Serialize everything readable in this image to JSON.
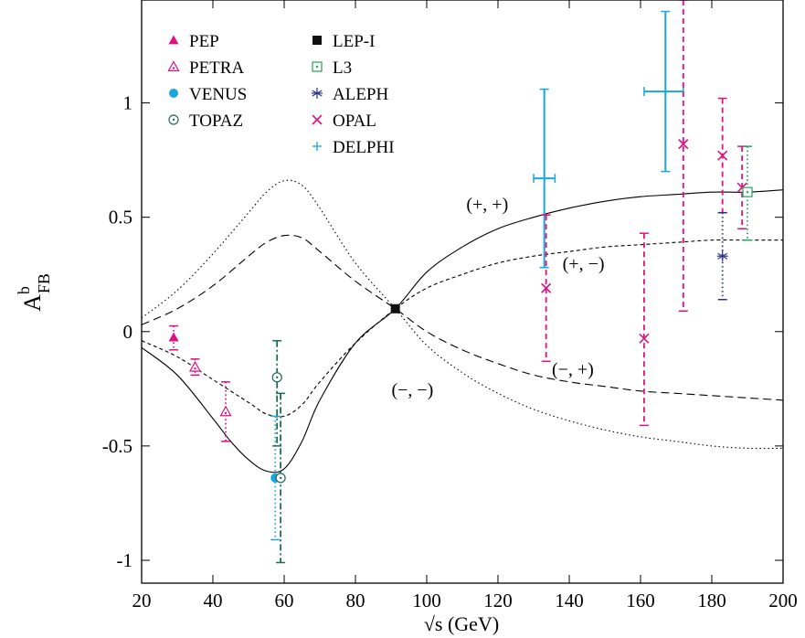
{
  "chart_data": {
    "type": "scatter",
    "xlabel": "√s (GeV)",
    "ylabel_main": "A",
    "ylabel_sup": "b",
    "ylabel_sub": "FB",
    "xlim": [
      20,
      200
    ],
    "ylim": [
      -1.1,
      1.45
    ],
    "xticks": [
      20,
      40,
      60,
      80,
      100,
      120,
      140,
      160,
      180,
      200
    ],
    "yticks": [
      -1,
      -0.5,
      0,
      0.5,
      1
    ],
    "xtick_labels": [
      "20",
      "40",
      "60",
      "80",
      "100",
      "120",
      "140",
      "160",
      "180",
      "200"
    ],
    "ytick_labels": [
      "-1",
      "-0.5",
      "0",
      "0.5",
      "1"
    ],
    "grid": false,
    "legend_position": "top-left",
    "legend": [
      {
        "label": "PEP",
        "marker": "triangle-filled",
        "color": "#e0117f"
      },
      {
        "label": "PETRA",
        "marker": "triangle-dot",
        "color": "#e0117f"
      },
      {
        "label": "VENUS",
        "marker": "circle-filled",
        "color": "#1aa6de"
      },
      {
        "label": "TOPAZ",
        "marker": "circle-dot",
        "color": "#1f6b4e"
      },
      {
        "label": "LEP-I",
        "marker": "square-filled",
        "color": "#111111"
      },
      {
        "label": "L3",
        "marker": "square-dot",
        "color": "#22a356"
      },
      {
        "label": "ALEPH",
        "marker": "asterisk",
        "color": "#2a3580"
      },
      {
        "label": "OPAL",
        "marker": "cross",
        "color": "#e0117f"
      },
      {
        "label": "DELPHI",
        "marker": "plus",
        "color": "#1aa6de"
      }
    ],
    "curves": [
      {
        "label": "(+, +)",
        "style": "solid",
        "x": [
          20,
          30,
          40,
          45,
          50,
          55,
          60,
          65,
          70,
          80,
          91.2,
          100,
          110,
          120,
          130,
          140,
          150,
          160,
          170,
          180,
          190,
          200
        ],
        "y": [
          -0.07,
          -0.19,
          -0.38,
          -0.48,
          -0.56,
          -0.61,
          -0.6,
          -0.48,
          -0.3,
          -0.05,
          0.1,
          0.26,
          0.37,
          0.45,
          0.5,
          0.54,
          0.57,
          0.59,
          0.6,
          0.61,
          0.61,
          0.62
        ]
      },
      {
        "label": "(+, −)",
        "style": "short-dash",
        "x": [
          20,
          30,
          40,
          50,
          55,
          60,
          65,
          70,
          80,
          91.2,
          100,
          110,
          120,
          130,
          140,
          150,
          160,
          170,
          180,
          190,
          200
        ],
        "y": [
          -0.04,
          -0.11,
          -0.21,
          -0.31,
          -0.36,
          -0.37,
          -0.32,
          -0.22,
          -0.05,
          0.1,
          0.19,
          0.25,
          0.3,
          0.33,
          0.35,
          0.37,
          0.38,
          0.39,
          0.4,
          0.4,
          0.4
        ]
      },
      {
        "label": "(−, +)",
        "style": "long-dash",
        "x": [
          20,
          30,
          40,
          50,
          55,
          60,
          65,
          70,
          80,
          91.2,
          100,
          110,
          120,
          130,
          140,
          150,
          160,
          170,
          180,
          190,
          200
        ],
        "y": [
          0.03,
          0.1,
          0.2,
          0.33,
          0.39,
          0.42,
          0.41,
          0.35,
          0.22,
          0.1,
          0.0,
          -0.08,
          -0.14,
          -0.19,
          -0.22,
          -0.24,
          -0.26,
          -0.27,
          -0.28,
          -0.29,
          -0.3
        ]
      },
      {
        "label": "(−, −)",
        "style": "dotted",
        "x": [
          20,
          30,
          40,
          50,
          55,
          60,
          65,
          70,
          80,
          91.2,
          100,
          110,
          120,
          130,
          140,
          150,
          160,
          170,
          180,
          190,
          200
        ],
        "y": [
          0.06,
          0.18,
          0.34,
          0.52,
          0.61,
          0.66,
          0.64,
          0.54,
          0.3,
          0.1,
          -0.06,
          -0.18,
          -0.27,
          -0.34,
          -0.39,
          -0.43,
          -0.46,
          -0.48,
          -0.5,
          -0.51,
          -0.51
        ]
      }
    ],
    "curve_labels": [
      {
        "text": "(+, +)",
        "x": 117,
        "y": 0.53
      },
      {
        "text": "(+, −)",
        "x": 144,
        "y": 0.27
      },
      {
        "text": "(−, +)",
        "x": 141,
        "y": -0.19
      },
      {
        "text": "(−, −)",
        "x": 96,
        "y": -0.28
      }
    ],
    "points": [
      {
        "series": "PEP",
        "marker": "triangle-filled",
        "color": "#e0117f",
        "x": 29,
        "y": -0.025,
        "ylow": -0.08,
        "yhigh": 0.025,
        "err_style": "dotted"
      },
      {
        "series": "PETRA",
        "marker": "triangle-dot",
        "color": "#e0117f",
        "x": 35,
        "y": -0.155,
        "ylow": -0.19,
        "yhigh": -0.12,
        "err_style": "dotted"
      },
      {
        "series": "PETRA",
        "marker": "triangle-dot",
        "color": "#e0117f",
        "x": 43.6,
        "y": -0.35,
        "ylow": -0.48,
        "yhigh": -0.22,
        "err_style": "dotted"
      },
      {
        "series": "VENUS",
        "marker": "circle-filled",
        "color": "#1aa6de",
        "x": 57.5,
        "y": -0.64,
        "ylow": -0.91,
        "yhigh": -0.37,
        "err_style": "dotted"
      },
      {
        "series": "TOPAZ",
        "marker": "circle-dot",
        "color": "#1f6b4e",
        "x": 58,
        "y": -0.2,
        "ylow": -0.5,
        "yhigh": -0.04,
        "err_style": "dashdot"
      },
      {
        "series": "TOPAZ",
        "marker": "circle-dot",
        "color": "#1f6b4e",
        "x": 59,
        "y": -0.64,
        "ylow": -1.01,
        "yhigh": -0.27,
        "err_style": "dashdot"
      },
      {
        "series": "LEP-I",
        "marker": "square-filled",
        "color": "#111111",
        "x": 91.2,
        "y": 0.1,
        "ylow": 0.1,
        "yhigh": 0.1,
        "err_style": "solid"
      },
      {
        "series": "DELPHI",
        "marker": "plus",
        "color": "#1aa6de",
        "x": 133,
        "y": 0.67,
        "ylow": 0.28,
        "yhigh": 1.06,
        "xlow": 130,
        "xhigh": 136,
        "err_style": "solid"
      },
      {
        "series": "DELPHI",
        "marker": "plus",
        "color": "#1aa6de",
        "x": 167,
        "y": 1.05,
        "ylow": 0.7,
        "yhigh": 1.4,
        "xlow": 161,
        "xhigh": 172,
        "err_style": "solid"
      },
      {
        "series": "OPAL",
        "marker": "cross",
        "color": "#e0117f",
        "x": 133.5,
        "y": 0.19,
        "ylow": -0.13,
        "yhigh": 0.51,
        "err_style": "dashed"
      },
      {
        "series": "OPAL",
        "marker": "cross",
        "color": "#e0117f",
        "x": 161,
        "y": -0.03,
        "ylow": -0.41,
        "yhigh": 0.43,
        "err_style": "dashed"
      },
      {
        "series": "OPAL",
        "marker": "cross",
        "color": "#e0117f",
        "x": 172,
        "y": 0.82,
        "ylow": 0.09,
        "yhigh": 1.45,
        "err_style": "dashed"
      },
      {
        "series": "OPAL",
        "marker": "cross",
        "color": "#e0117f",
        "x": 183,
        "y": 0.77,
        "ylow": 0.52,
        "yhigh": 1.02,
        "err_style": "dashed"
      },
      {
        "series": "OPAL",
        "marker": "cross",
        "color": "#e0117f",
        "x": 188.5,
        "y": 0.63,
        "ylow": 0.45,
        "yhigh": 0.81,
        "err_style": "dashed"
      },
      {
        "series": "ALEPH",
        "marker": "asterisk",
        "color": "#2a3580",
        "x": 183,
        "y": 0.33,
        "ylow": 0.14,
        "yhigh": 0.52,
        "err_style": "dotted"
      },
      {
        "series": "L3",
        "marker": "square-dot",
        "color": "#22a356",
        "x": 190,
        "y": 0.61,
        "ylow": 0.4,
        "yhigh": 0.81,
        "err_style": "dotted"
      }
    ]
  }
}
